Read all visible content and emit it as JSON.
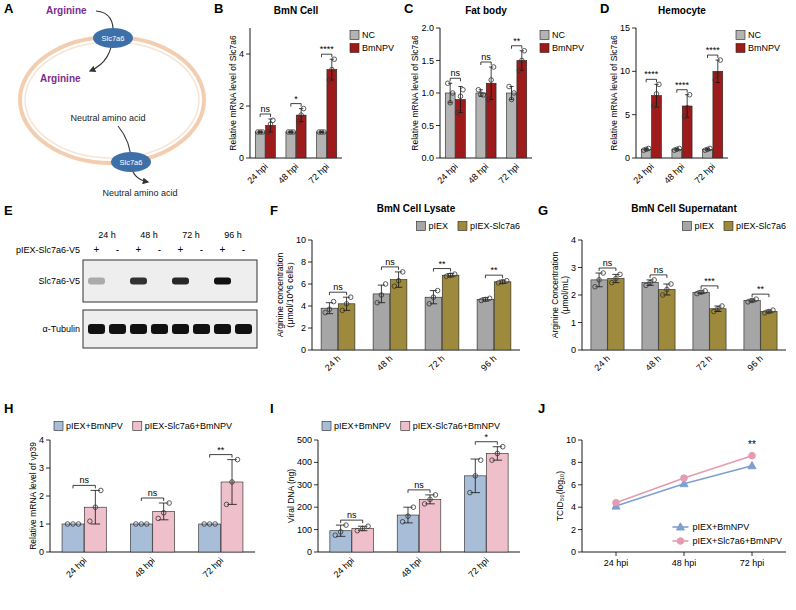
{
  "chart_data": [
    {
      "type": "bar",
      "panel_label": "B",
      "title": "BmN Cell",
      "ylabel": "Relative mRNA level of Slc7a6",
      "categories": [
        "24 hpi",
        "48 hpi",
        "72 hpi"
      ],
      "series": [
        {
          "name": "NC",
          "color": "#b3b3b3",
          "values": [
            1,
            1,
            1
          ],
          "errors": [
            0.02,
            0.02,
            0.02
          ],
          "points": [
            [
              1,
              1,
              1
            ],
            [
              1,
              1,
              1
            ],
            [
              1,
              1,
              1
            ]
          ]
        },
        {
          "name": "BmNPV",
          "color": "#9e1b1b",
          "values": [
            1.25,
            1.65,
            3.4
          ],
          "errors": [
            0.25,
            0.25,
            0.4
          ],
          "points": [
            [
              1.0,
              1.3,
              1.45
            ],
            [
              1.4,
              1.65,
              1.9
            ],
            [
              3.0,
              3.4,
              3.8
            ]
          ]
        }
      ],
      "annotations": [
        "ns",
        "*",
        "****"
      ],
      "ylim": [
        0,
        5
      ],
      "yticks": [
        0,
        2,
        4
      ],
      "legend": "right",
      "grid": false
    },
    {
      "type": "bar",
      "panel_label": "C",
      "title": "Fat body",
      "ylabel": "Relative mRNA level of Slc7a6",
      "categories": [
        "24 hpi",
        "48 hpi",
        "72 hpi"
      ],
      "series": [
        {
          "name": "NC",
          "color": "#b3b3b3",
          "values": [
            1,
            1,
            1
          ],
          "errors": [
            0.15,
            0.05,
            0.1
          ],
          "points": [
            [
              1.15,
              0.85,
              1.0
            ],
            [
              1.05,
              0.98,
              0.97
            ],
            [
              1.1,
              0.9,
              1.0
            ]
          ]
        },
        {
          "name": "BmNPV",
          "color": "#9e1b1b",
          "values": [
            0.9,
            1.15,
            1.5
          ],
          "errors": [
            0.2,
            0.25,
            0.15
          ],
          "points": [
            [
              0.7,
              0.95,
              1.05
            ],
            [
              0.9,
              1.2,
              1.4
            ],
            [
              1.35,
              1.5,
              1.65
            ]
          ]
        }
      ],
      "annotations": [
        "ns",
        "ns",
        "**"
      ],
      "ylim": [
        0,
        2
      ],
      "yticks": [
        {
          "value": 0,
          "label": "0.0"
        },
        0.5,
        {
          "value": 1,
          "label": "1.0"
        },
        1.5,
        {
          "value": 2,
          "label": "2.0"
        }
      ],
      "legend": "right",
      "grid": false
    },
    {
      "type": "bar",
      "panel_label": "D",
      "title": "Hemocyte",
      "ylabel": "Relative mRNA level of Slc7a6",
      "categories": [
        "24 hpi",
        "48 hpi",
        "72 hpi"
      ],
      "series": [
        {
          "name": "NC",
          "color": "#b3b3b3",
          "values": [
            1,
            1,
            1
          ],
          "errors": [
            0.1,
            0.1,
            0.1
          ],
          "points": [
            [
              0.9,
              1.0,
              1.1
            ],
            [
              0.9,
              1.0,
              1.1
            ],
            [
              0.9,
              1.0,
              1.1
            ]
          ]
        },
        {
          "name": "BmNPV",
          "color": "#9e1b1b",
          "values": [
            7.2,
            6.0,
            10.0
          ],
          "errors": [
            1.3,
            1.3,
            1.3
          ],
          "points": [
            [
              6.0,
              7.4,
              8.5
            ],
            [
              4.8,
              5.8,
              7.3
            ],
            [
              9.0,
              9.7,
              11.3
            ]
          ]
        }
      ],
      "annotations": [
        "****",
        "****",
        "****"
      ],
      "ylim": [
        0,
        15
      ],
      "yticks": [
        0,
        5,
        10,
        15
      ],
      "legend": "right",
      "grid": false
    },
    {
      "type": "bar",
      "panel_label": "F",
      "title": "BmN Cell Lysate",
      "ylabel": "Arginine concentration（μmol/10^6 cells）",
      "categories": [
        "24 h",
        "48 h",
        "72 h",
        "96 h"
      ],
      "series": [
        {
          "name": "pIEX",
          "color": "#a6a6a6",
          "values": [
            3.8,
            5.1,
            4.8,
            4.6
          ],
          "errors": [
            0.5,
            0.8,
            0.6,
            0.15
          ],
          "points": [
            [
              3.4,
              3.7,
              4.4
            ],
            [
              4.3,
              5.0,
              6.0
            ],
            [
              4.2,
              4.8,
              5.4
            ],
            [
              4.5,
              4.6,
              4.7
            ]
          ]
        },
        {
          "name": "pIEX-Slc7a6",
          "color": "#9d8a3d",
          "values": [
            4.2,
            6.4,
            6.8,
            6.2
          ],
          "errors": [
            0.6,
            0.7,
            0.15,
            0.15
          ],
          "points": [
            [
              3.6,
              4.2,
              4.8
            ],
            [
              5.8,
              6.3,
              7.1
            ],
            [
              6.7,
              6.8,
              6.9
            ],
            [
              6.1,
              6.2,
              6.3
            ]
          ]
        }
      ],
      "annotations": [
        "ns",
        "ns",
        "**",
        "**"
      ],
      "ylim": [
        0,
        10
      ],
      "yticks": [
        0,
        2,
        4,
        6,
        8,
        10
      ],
      "legend": "top right",
      "grid": false
    },
    {
      "type": "bar",
      "panel_label": "G",
      "title": "BmN Cell Supernatant",
      "ylabel": "Arginine Concentration (μmol/mL)",
      "categories": [
        "24 h",
        "48 h",
        "72 h",
        "96 h"
      ],
      "series": [
        {
          "name": "pIEX",
          "color": "#a6a6a6",
          "values": [
            2.55,
            2.45,
            2.1,
            1.8
          ],
          "errors": [
            0.25,
            0.1,
            0.05,
            0.05
          ],
          "points": [
            [
              2.3,
              2.55,
              2.8
            ],
            [
              2.35,
              2.45,
              2.55
            ],
            [
              2.05,
              2.1,
              2.15
            ],
            [
              1.75,
              1.8,
              1.85
            ]
          ]
        },
        {
          "name": "pIEX-Slc7a6",
          "color": "#9d8a3d",
          "values": [
            2.6,
            2.2,
            1.5,
            1.4
          ],
          "errors": [
            0.15,
            0.2,
            0.1,
            0.05
          ],
          "points": [
            [
              2.45,
              2.6,
              2.75
            ],
            [
              2.0,
              2.2,
              2.4
            ],
            [
              1.4,
              1.5,
              1.6
            ],
            [
              1.35,
              1.4,
              1.45
            ]
          ]
        }
      ],
      "annotations": [
        "ns",
        "ns",
        "***",
        "**"
      ],
      "ylim": [
        0,
        4
      ],
      "yticks": [
        0,
        1,
        2,
        3,
        4
      ],
      "legend": "top right",
      "grid": false
    },
    {
      "type": "bar",
      "panel_label": "H",
      "ylabel": "Relative mRNA level of vp39",
      "categories": [
        "24 hpi",
        "48 hpi",
        "72 hpi"
      ],
      "series": [
        {
          "name": "pIEX+BmNPV",
          "color": "#a8bed8",
          "values": [
            1,
            1,
            1
          ],
          "errors": [
            0,
            0,
            0
          ],
          "points": [
            [
              1,
              1,
              1
            ],
            [
              1,
              1,
              1
            ],
            [
              1,
              1,
              1
            ]
          ]
        },
        {
          "name": "pIEX-Slc7a6+BmNPV",
          "color": "#efc0cb",
          "values": [
            1.6,
            1.45,
            2.5
          ],
          "errors": [
            0.6,
            0.3,
            0.8
          ],
          "points": [
            [
              1.1,
              1.6,
              2.2
            ],
            [
              1.2,
              1.4,
              1.75
            ],
            [
              1.7,
              2.5,
              3.3
            ]
          ]
        }
      ],
      "annotations": [
        "ns",
        "ns",
        "**"
      ],
      "ylim": [
        0,
        4
      ],
      "yticks": [
        0,
        1,
        2,
        3,
        4
      ],
      "legend": "top left",
      "grid": false
    },
    {
      "type": "bar",
      "panel_label": "I",
      "ylabel": "Viral DNA (ng)",
      "categories": [
        "24 hpi",
        "48 hpi",
        "72 hpi"
      ],
      "series": [
        {
          "name": "pIEX+BmNPV",
          "color": "#a8bed8",
          "values": [
            95,
            165,
            340
          ],
          "errors": [
            25,
            35,
            75
          ],
          "points": [
            [
              75,
              90,
              120
            ],
            [
              135,
              160,
              200
            ],
            [
              265,
              340,
              410
            ]
          ]
        },
        {
          "name": "pIEX-Slc7a6+BmNPV",
          "color": "#efc0cb",
          "values": [
            105,
            235,
            440
          ],
          "errors": [
            10,
            20,
            30
          ],
          "points": [
            [
              95,
              105,
              115
            ],
            [
              215,
              235,
              255
            ],
            [
              410,
              440,
              470
            ]
          ]
        }
      ],
      "annotations": [
        "ns",
        "ns",
        "*"
      ],
      "ylim": [
        0,
        500
      ],
      "yticks": [
        0,
        100,
        200,
        300,
        400,
        500
      ],
      "legend": "top left",
      "grid": false
    },
    {
      "type": "line",
      "panel_label": "J",
      "ylabel": "TCID₅₀(log₁₀)",
      "categories": [
        "24 hpi",
        "48 hpi",
        "72 hpi"
      ],
      "series": [
        {
          "name": "pIEX+BmNPV",
          "color": "#7f9fcf",
          "marker": "triangle",
          "values": [
            4.1,
            6.1,
            7.7
          ]
        },
        {
          "name": "pIEX+Slc7a6+BmNPV",
          "color": "#e59bb0",
          "marker": "circle",
          "values": [
            4.4,
            6.6,
            8.6
          ]
        }
      ],
      "annotations": [
        null,
        null,
        "**"
      ],
      "ylim": [
        0,
        10
      ],
      "yticks": [
        0,
        2,
        4,
        6,
        8,
        10
      ],
      "legend": "lower right",
      "grid": false
    }
  ],
  "diagram": {
    "panel_label": "A",
    "arginine_outside": "Arginine",
    "arginine_inside": "Arginine",
    "transporters": [
      "Slc7a6",
      "Slc7a6"
    ],
    "neutral_inside": "Neutral amino acid",
    "neutral_outside": "Neutral amino acid"
  },
  "blot": {
    "panel_label": "E",
    "columns": [
      "24 h",
      "48 h",
      "72 h",
      "96 h"
    ],
    "condition": "pIEX-Slc7a6-V5",
    "lanes": [
      "+",
      "-",
      "+",
      "-",
      "+",
      "-",
      "+",
      "-"
    ],
    "rows": [
      {
        "label": "Slc7a6-V5",
        "intensities": [
          0.3,
          0,
          0.85,
          0,
          0.9,
          0,
          1,
          0
        ]
      },
      {
        "label": "α-Tubulin",
        "intensities": [
          1,
          1,
          1,
          1,
          1,
          1,
          1,
          1
        ]
      }
    ]
  }
}
